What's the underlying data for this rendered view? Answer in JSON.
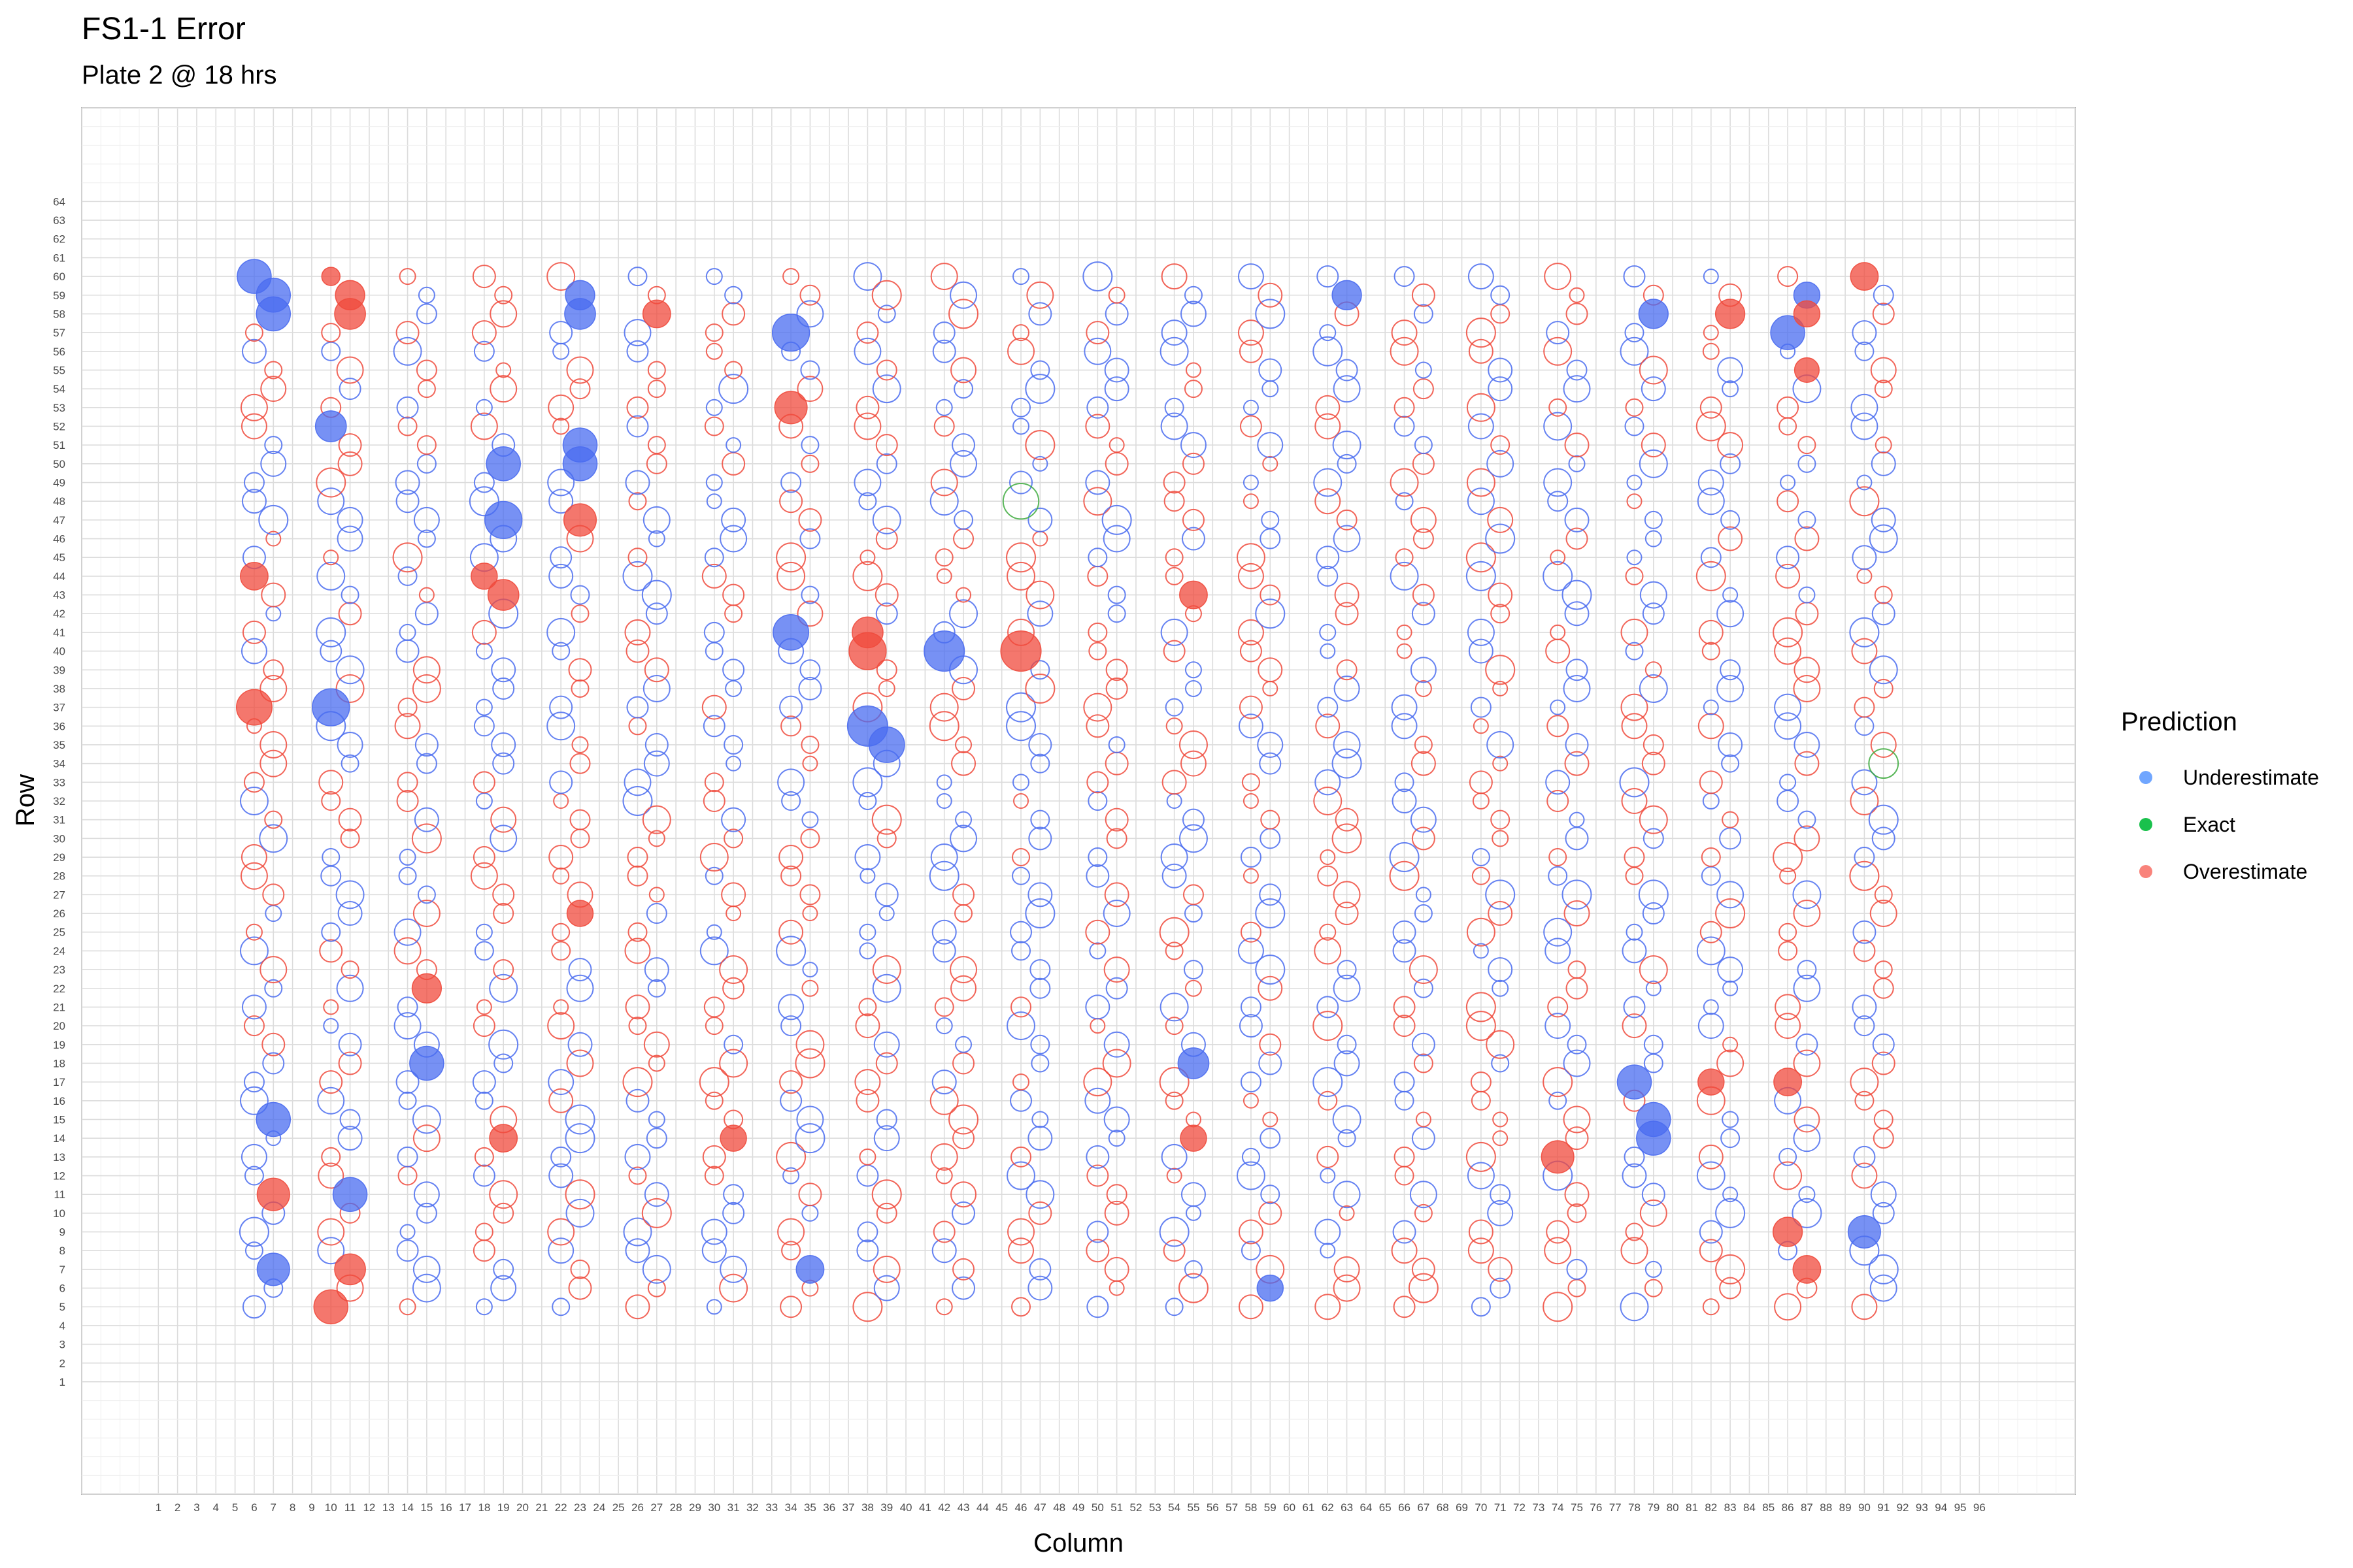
{
  "chart_data": {
    "type": "scatter",
    "title": "FS1-1 Error",
    "subtitle": "Plate 2 @ 18 hrs",
    "xlabel": "Column",
    "ylabel": "Row",
    "xlim": [
      -3,
      101
    ],
    "ylim": [
      -5,
      69
    ],
    "x_ticks": [
      1,
      2,
      3,
      4,
      5,
      6,
      7,
      8,
      9,
      10,
      11,
      12,
      13,
      14,
      15,
      16,
      17,
      18,
      19,
      20,
      21,
      22,
      23,
      24,
      25,
      26,
      27,
      28,
      29,
      30,
      31,
      32,
      33,
      34,
      35,
      36,
      37,
      38,
      39,
      40,
      41,
      42,
      43,
      44,
      45,
      46,
      47,
      48,
      49,
      50,
      51,
      52,
      53,
      54,
      55,
      56,
      57,
      58,
      59,
      60,
      61,
      62,
      63,
      64,
      65,
      66,
      67,
      68,
      69,
      70,
      71,
      72,
      73,
      74,
      75,
      76,
      77,
      78,
      79,
      80,
      81,
      82,
      83,
      84,
      85,
      86,
      87,
      88,
      89,
      90,
      91,
      92,
      93,
      94,
      95,
      96
    ],
    "y_ticks": [
      1,
      2,
      3,
      4,
      5,
      6,
      7,
      8,
      9,
      10,
      11,
      12,
      13,
      14,
      15,
      16,
      17,
      18,
      19,
      20,
      21,
      22,
      23,
      24,
      25,
      26,
      27,
      28,
      29,
      30,
      31,
      32,
      33,
      34,
      35,
      36,
      37,
      38,
      39,
      40,
      41,
      42,
      43,
      44,
      45,
      46,
      47,
      48,
      49,
      50,
      51,
      52,
      53,
      54,
      55,
      56,
      57,
      58,
      59,
      60,
      61,
      62,
      63,
      64
    ],
    "grid": true,
    "legend": {
      "title": "Prediction",
      "position": "right",
      "entries": [
        {
          "label": "Underestimate",
          "color": "#619CFF"
        },
        {
          "label": "Exact",
          "color": "#00BA38"
        },
        {
          "label": "Overestimate",
          "color": "#F8766D"
        }
      ]
    },
    "colors": {
      "Underestimate": "#4A6CF0",
      "Exact": "#3DAA3D",
      "Overestimate": "#F04A3C"
    },
    "filled_points": [
      {
        "x": 6,
        "y": 60,
        "class": "Underestimate",
        "size": 0.75
      },
      {
        "x": 7,
        "y": 59,
        "class": "Underestimate",
        "size": 0.75
      },
      {
        "x": 7,
        "y": 58,
        "class": "Underestimate",
        "size": 0.75
      },
      {
        "x": 10,
        "y": 60,
        "class": "Overestimate",
        "size": 0.25
      },
      {
        "x": 11,
        "y": 59,
        "class": "Overestimate",
        "size": 0.6
      },
      {
        "x": 11,
        "y": 58,
        "class": "Overestimate",
        "size": 0.65
      },
      {
        "x": 23,
        "y": 59,
        "class": "Underestimate",
        "size": 0.6
      },
      {
        "x": 23,
        "y": 58,
        "class": "Underestimate",
        "size": 0.65
      },
      {
        "x": 27,
        "y": 58,
        "class": "Overestimate",
        "size": 0.55
      },
      {
        "x": 34,
        "y": 57,
        "class": "Underestimate",
        "size": 0.85
      },
      {
        "x": 63,
        "y": 59,
        "class": "Underestimate",
        "size": 0.6
      },
      {
        "x": 79,
        "y": 58,
        "class": "Underestimate",
        "size": 0.6
      },
      {
        "x": 83,
        "y": 58,
        "class": "Overestimate",
        "size": 0.6
      },
      {
        "x": 86,
        "y": 57,
        "class": "Underestimate",
        "size": 0.75
      },
      {
        "x": 87,
        "y": 59,
        "class": "Underestimate",
        "size": 0.5
      },
      {
        "x": 87,
        "y": 58,
        "class": "Overestimate",
        "size": 0.5
      },
      {
        "x": 87,
        "y": 55,
        "class": "Overestimate",
        "size": 0.45
      },
      {
        "x": 90,
        "y": 60,
        "class": "Overestimate",
        "size": 0.55
      },
      {
        "x": 34,
        "y": 53,
        "class": "Overestimate",
        "size": 0.7
      },
      {
        "x": 10,
        "y": 52,
        "class": "Underestimate",
        "size": 0.65
      },
      {
        "x": 23,
        "y": 51,
        "class": "Underestimate",
        "size": 0.75
      },
      {
        "x": 23,
        "y": 50,
        "class": "Underestimate",
        "size": 0.75
      },
      {
        "x": 19,
        "y": 50,
        "class": "Underestimate",
        "size": 0.75
      },
      {
        "x": 19,
        "y": 47,
        "class": "Underestimate",
        "size": 0.85
      },
      {
        "x": 23,
        "y": 47,
        "class": "Overestimate",
        "size": 0.7
      },
      {
        "x": 6,
        "y": 44,
        "class": "Overestimate",
        "size": 0.55
      },
      {
        "x": 18,
        "y": 44,
        "class": "Overestimate",
        "size": 0.5
      },
      {
        "x": 19,
        "y": 43,
        "class": "Overestimate",
        "size": 0.65
      },
      {
        "x": 55,
        "y": 43,
        "class": "Overestimate",
        "size": 0.55
      },
      {
        "x": 34,
        "y": 41,
        "class": "Underestimate",
        "size": 0.8
      },
      {
        "x": 38,
        "y": 41,
        "class": "Overestimate",
        "size": 0.65
      },
      {
        "x": 38,
        "y": 40,
        "class": "Overestimate",
        "size": 0.85
      },
      {
        "x": 42,
        "y": 40,
        "class": "Underestimate",
        "size": 0.95
      },
      {
        "x": 46,
        "y": 40,
        "class": "Overestimate",
        "size": 0.95
      },
      {
        "x": 6,
        "y": 37,
        "class": "Overestimate",
        "size": 0.8
      },
      {
        "x": 10,
        "y": 37,
        "class": "Underestimate",
        "size": 0.85
      },
      {
        "x": 38,
        "y": 36,
        "class": "Underestimate",
        "size": 0.95
      },
      {
        "x": 39,
        "y": 35,
        "class": "Underestimate",
        "size": 0.8
      },
      {
        "x": 23,
        "y": 26,
        "class": "Overestimate",
        "size": 0.5
      },
      {
        "x": 15,
        "y": 22,
        "class": "Overestimate",
        "size": 0.6
      },
      {
        "x": 15,
        "y": 18,
        "class": "Underestimate",
        "size": 0.75
      },
      {
        "x": 55,
        "y": 18,
        "class": "Underestimate",
        "size": 0.65
      },
      {
        "x": 78,
        "y": 17,
        "class": "Underestimate",
        "size": 0.75
      },
      {
        "x": 82,
        "y": 17,
        "class": "Overestimate",
        "size": 0.5
      },
      {
        "x": 86,
        "y": 17,
        "class": "Overestimate",
        "size": 0.55
      },
      {
        "x": 7,
        "y": 15,
        "class": "Underestimate",
        "size": 0.75
      },
      {
        "x": 79,
        "y": 15,
        "class": "Underestimate",
        "size": 0.75
      },
      {
        "x": 79,
        "y": 14,
        "class": "Underestimate",
        "size": 0.75
      },
      {
        "x": 19,
        "y": 14,
        "class": "Overestimate",
        "size": 0.55
      },
      {
        "x": 31,
        "y": 14,
        "class": "Overestimate",
        "size": 0.5
      },
      {
        "x": 55,
        "y": 14,
        "class": "Overestimate",
        "size": 0.5
      },
      {
        "x": 74,
        "y": 13,
        "class": "Overestimate",
        "size": 0.7
      },
      {
        "x": 7,
        "y": 11,
        "class": "Overestimate",
        "size": 0.7
      },
      {
        "x": 11,
        "y": 11,
        "class": "Underestimate",
        "size": 0.75
      },
      {
        "x": 86,
        "y": 9,
        "class": "Overestimate",
        "size": 0.6
      },
      {
        "x": 90,
        "y": 9,
        "class": "Underestimate",
        "size": 0.7
      },
      {
        "x": 7,
        "y": 7,
        "class": "Underestimate",
        "size": 0.7
      },
      {
        "x": 11,
        "y": 7,
        "class": "Overestimate",
        "size": 0.65
      },
      {
        "x": 35,
        "y": 7,
        "class": "Underestimate",
        "size": 0.55
      },
      {
        "x": 87,
        "y": 7,
        "class": "Overestimate",
        "size": 0.55
      },
      {
        "x": 59,
        "y": 6,
        "class": "Underestimate",
        "size": 0.5
      },
      {
        "x": 10,
        "y": 5,
        "class": "Overestimate",
        "size": 0.75
      }
    ],
    "exact_points": [
      {
        "x": 46,
        "y": 48,
        "class": "Exact",
        "size": 0.8
      },
      {
        "x": 91,
        "y": 34,
        "class": "Exact",
        "size": 0.6
      }
    ],
    "hollow_grid": {
      "description": "hollow-ring points fill the remaining wells; left member of each column pair at rows 5,8,9,12,13,16,17,20,21,24,25,28,29,32,33,36,37,40,41,44,45,48,49,52,53,56,57,60; right member at rows 6,7,10,11,14,15,18,19,22,23,26,27,30,31,34,35,38,39,42,43,46,47,50,51,54,55,58,59",
      "left_columns": [
        6,
        10,
        14,
        18,
        22,
        26,
        30,
        34,
        38,
        42,
        46,
        50,
        54,
        58,
        62,
        66,
        70,
        74,
        78,
        82,
        86,
        90
      ],
      "right_columns": [
        7,
        11,
        15,
        19,
        23,
        27,
        31,
        35,
        39,
        43,
        47,
        51,
        55,
        59,
        63,
        67,
        71,
        75,
        79,
        83,
        87,
        91
      ]
    }
  }
}
